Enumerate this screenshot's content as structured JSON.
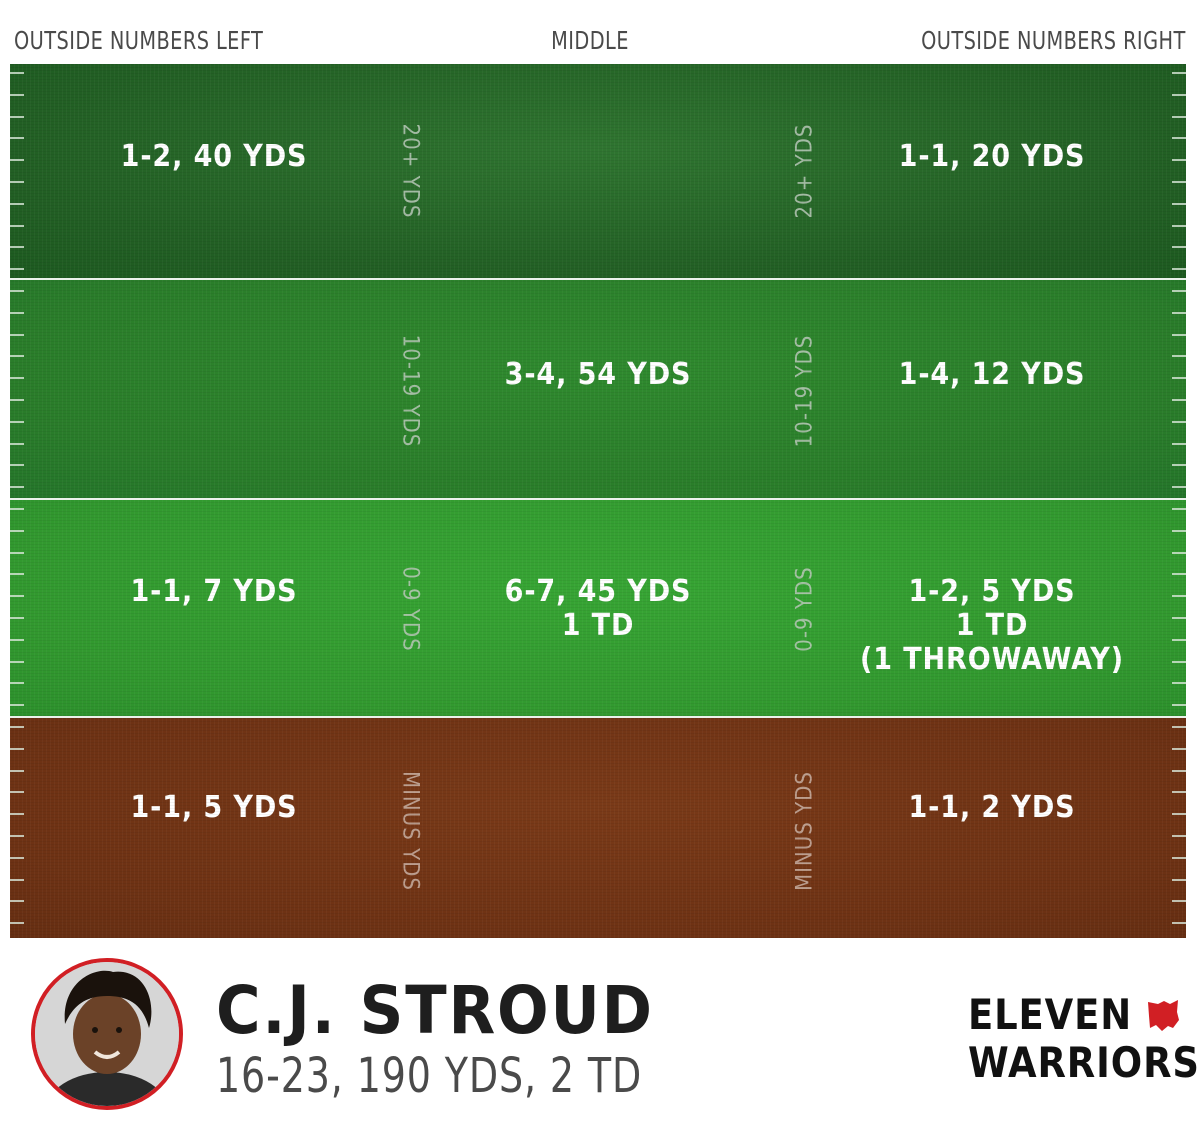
{
  "columns": {
    "left": "OUTSIDE NUMBERS LEFT",
    "middle": "MIDDLE",
    "right": "OUTSIDE NUMBERS RIGHT"
  },
  "zones": [
    {
      "label": "20+ YDS",
      "left": [
        "1-2, 40 YDS"
      ],
      "middle": [],
      "right": [
        "1-1, 20 YDS"
      ]
    },
    {
      "label": "10-19 YDS",
      "left": [],
      "middle": [
        "3-4, 54 YDS"
      ],
      "right": [
        "1-4, 12 YDS"
      ]
    },
    {
      "label": "0-9 YDS",
      "left": [
        "1-1, 7 YDS"
      ],
      "middle": [
        "6-7, 45 YDS",
        "1 TD"
      ],
      "right": [
        "1-2, 5 YDS",
        "1 TD",
        "(1 THROWAWAY)"
      ]
    },
    {
      "label": "MINUS YDS",
      "left": [
        "1-1, 5 YDS"
      ],
      "middle": [],
      "right": [
        "1-1, 2 YDS"
      ]
    }
  ],
  "player": {
    "name": "C.J. STROUD",
    "stats": "16-23, 190 YDS, 2 TD"
  },
  "brand": {
    "line1": "ELEVEN",
    "line2": "WARRIORS"
  },
  "colors": {
    "zone_20_plus": "#225f24",
    "zone_10_19": "#2a7d2a",
    "zone_0_9": "#32992f",
    "zone_minus": "#6e3214",
    "accent_red": "#d11f24"
  },
  "icons": {
    "avatar": "player-headshot",
    "brand_mark": "ohio-state-shape-icon"
  }
}
